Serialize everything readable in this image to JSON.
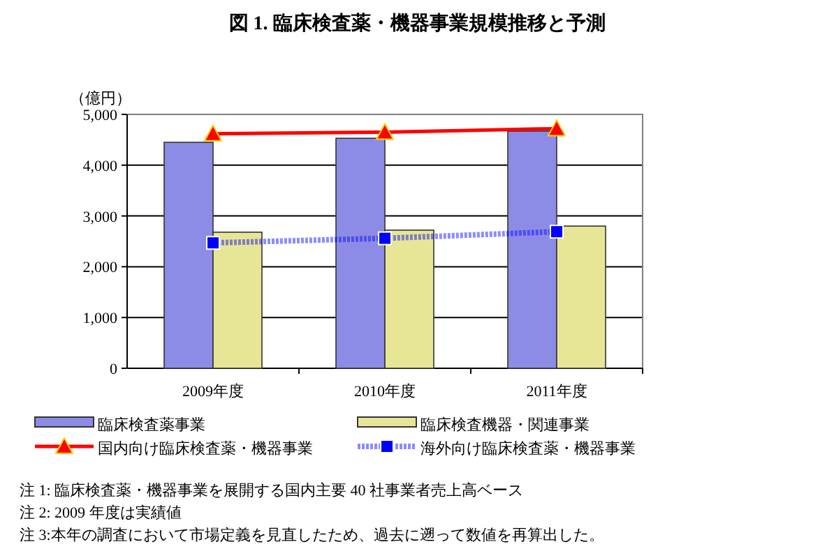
{
  "chart_data": {
    "type": "bar",
    "title": "図 1. 臨床検査薬・機器事業規模推移と予測",
    "ylabel": "（億円）",
    "categories": [
      "2009年度",
      "2010年度",
      "2011年度"
    ],
    "series": [
      {
        "name": "臨床検査薬事業",
        "color": "#8c8ce6",
        "values": [
          4450,
          4530,
          4670
        ]
      },
      {
        "name": "臨床検査機器・関連事業",
        "color": "#e6e696",
        "values": [
          2680,
          2720,
          2800
        ]
      },
      {
        "name": "国内向け臨床検査薬・機器事業",
        "type": "line",
        "color": "#ff0000",
        "marker": "triangle",
        "line_style": "solid",
        "values": [
          4620,
          4650,
          4720
        ]
      },
      {
        "name": "海外向け臨床検査薬・機器事業",
        "type": "line",
        "color": "#0000ff",
        "marker": "square",
        "line_style": "dotted",
        "values": [
          2470,
          2560,
          2690
        ]
      }
    ],
    "ylim": [
      0,
      5000
    ],
    "yticks": [
      {
        "value": 0,
        "label": "0"
      },
      {
        "value": 1000,
        "label": "1,000"
      },
      {
        "value": 2000,
        "label": "2,000"
      },
      {
        "value": 3000,
        "label": "3,000"
      },
      {
        "value": 4000,
        "label": "4,000"
      },
      {
        "value": 5000,
        "label": "5,000"
      }
    ],
    "grid": "y",
    "legend": "bottom",
    "annotations": [
      "注 1: 臨床検査薬・機器事業を展開する国内主要 40 社事業者売上高ベース",
      "注 2: 2009 年度は実績値",
      "注 3:本年の調査において市場定義を見直したため、過去に遡って数値を再算出した。"
    ]
  }
}
